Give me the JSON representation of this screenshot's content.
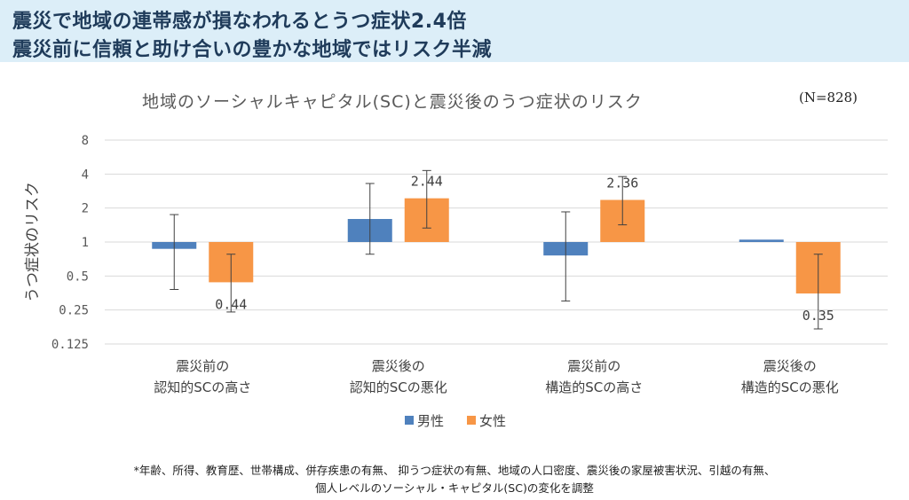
{
  "headline": {
    "line1": "震災で地域の連帯感が損なわれるとうつ症状2.4倍",
    "line2": "震災前に信頼と助け合いの豊かな地域ではリスク半減"
  },
  "chart_data": {
    "type": "bar",
    "title": "地域のソーシャルキャピタル(SC)と震災後のうつ症状のリスク",
    "sample_size_label": "(N=828)",
    "ylabel": "うつ症状のリスク",
    "xlabel": "",
    "y_scale": "log2",
    "ylim": [
      0.125,
      8
    ],
    "y_ticks": [
      "8",
      "4",
      "2",
      "1",
      "0.5",
      "0.25",
      "0.125"
    ],
    "baseline": 1,
    "grid": true,
    "legend_position": "bottom",
    "categories": [
      [
        "震災前の",
        "認知的SCの高さ"
      ],
      [
        "震災後の",
        "認知的SCの悪化"
      ],
      [
        "震災前の",
        "構造的SCの高さ"
      ],
      [
        "震災後の",
        "構造的SCの悪化"
      ]
    ],
    "series": [
      {
        "name": "男性",
        "color": "#4f81bd",
        "values": [
          0.87,
          1.6,
          0.76,
          1.05
        ],
        "ci_low": [
          0.38,
          0.78,
          0.3,
          null
        ],
        "ci_high": [
          1.75,
          3.3,
          1.85,
          null
        ],
        "data_labels": [
          null,
          null,
          null,
          null
        ]
      },
      {
        "name": "女性",
        "color": "#f79646",
        "values": [
          0.44,
          2.44,
          2.36,
          0.35
        ],
        "ci_low": [
          0.24,
          1.33,
          1.42,
          0.17
        ],
        "ci_high": [
          0.78,
          4.3,
          3.8,
          0.78
        ],
        "data_labels": [
          "0.44",
          "2.44",
          "2.36",
          "0.35"
        ]
      }
    ]
  },
  "footnote": {
    "line1": "*年齢、所得、教育歴、世帯構成、併存疾患の有無、 抑うつ症状の有無、地域の人口密度、震災後の家屋被害状況、引越の有無、",
    "line2": "個人レベルのソーシャル・キャピタル(SC)の変化を調整"
  }
}
